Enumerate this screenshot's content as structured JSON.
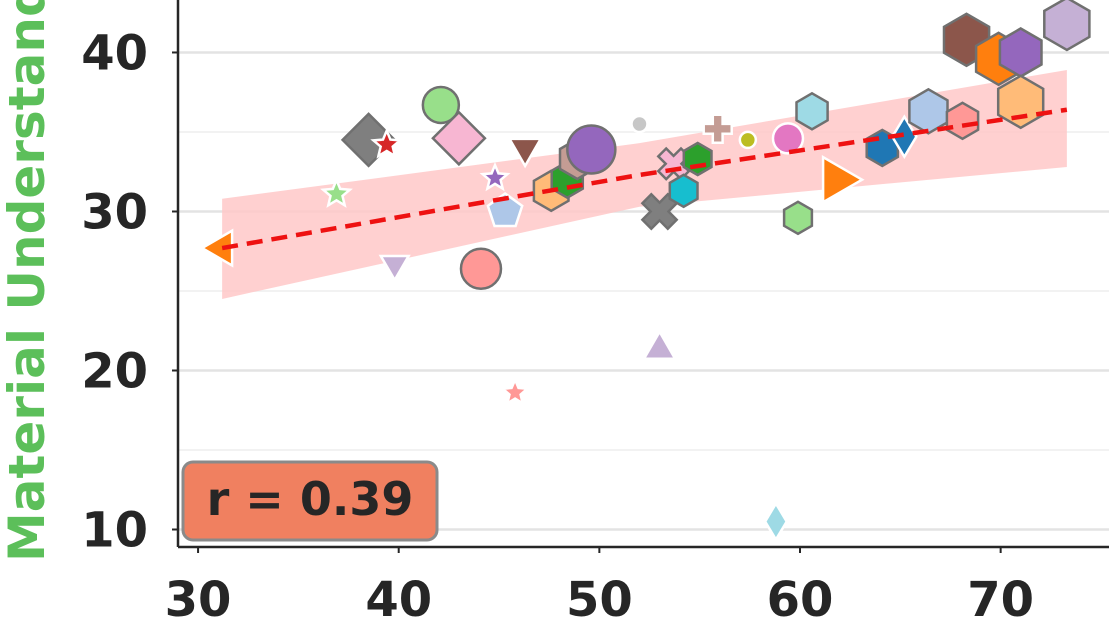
{
  "chart_data": {
    "type": "scatter",
    "ylabel": "Material Understanding",
    "ylabel_color": "#5cbf5a",
    "annotation": "r = 0.39",
    "annotation_color": "#f08060",
    "xlim": [
      29,
      75.4
    ],
    "ylim": [
      8.9,
      43.3
    ],
    "xticks": [
      30,
      40,
      50,
      60,
      70
    ],
    "yticks": [
      10,
      20,
      30,
      40
    ],
    "minor_yticks": [
      15,
      25,
      35
    ],
    "grid": true,
    "x": [
      31.2,
      36.9,
      38.5,
      39.4,
      39.8,
      42.1,
      43.0,
      44.1,
      44.8,
      45.3,
      45.8,
      46.3,
      47.6,
      48.4,
      48.9,
      49.6,
      52.0,
      53.0,
      53.0,
      53.7,
      54.2,
      54.9,
      55.9,
      57.4,
      58.8,
      59.4,
      59.9,
      60.6,
      61.8,
      64.1,
      65.2,
      66.4,
      68.1,
      68.3,
      69.9,
      71.0,
      71.0,
      73.3
    ],
    "y": [
      27.7,
      31.1,
      34.5,
      34.2,
      26.7,
      36.7,
      34.6,
      26.4,
      32.1,
      30.0,
      18.6,
      34.0,
      31.3,
      32.0,
      33.3,
      33.9,
      35.5,
      30.0,
      21.3,
      33.0,
      31.3,
      33.3,
      35.2,
      34.5,
      10.5,
      34.6,
      29.6,
      36.3,
      32.0,
      34.0,
      34.7,
      36.3,
      35.7,
      40.8,
      39.6,
      40.0,
      36.9,
      41.8
    ],
    "sizes": [
      20,
      14,
      26,
      14,
      16,
      18,
      26,
      20,
      13,
      18,
      13,
      18,
      20,
      18,
      20,
      24,
      8,
      18,
      18,
      16,
      16,
      16,
      14,
      8,
      18,
      15,
      16,
      18,
      26,
      18,
      20,
      22,
      18,
      26,
      26,
      24,
      26,
      26
    ],
    "markers": [
      "<",
      "*",
      "D",
      "*",
      "v",
      "o",
      "D",
      "o",
      "*",
      "p",
      "*",
      "v",
      "h",
      "h",
      "h",
      "o",
      "o",
      "X",
      "^",
      "X",
      "h",
      "h",
      "P",
      "o",
      "d",
      "o",
      "h",
      "h",
      ">",
      "h",
      "d",
      "h",
      "h",
      "h",
      "h",
      "h",
      "h",
      "h"
    ],
    "colors": [
      "#ff7f0e",
      "#98df8a",
      "#7f7f7f",
      "#d62728",
      "#c5b0d5",
      "#98df8a",
      "#f7b6d2",
      "#ff9896",
      "#9467bd",
      "#aec7e8",
      "#ff9896",
      "#8c564b",
      "#ffbb78",
      "#2ca02c",
      "#c49c94",
      "#9467bd",
      "#c7c7c7",
      "#7f7f7f",
      "#c5b0d5",
      "#f7b6d2",
      "#17becf",
      "#2ca02c",
      "#c49c94",
      "#bcbd22",
      "#9edae5",
      "#e377c2",
      "#98df8a",
      "#9edae5",
      "#ff7f0e",
      "#1f77b4",
      "#1f77b4",
      "#aec7e8",
      "#ff9896",
      "#8c564b",
      "#ff7f0e",
      "#9467bd",
      "#ffbb78",
      "#c5b0d5"
    ],
    "fit": {
      "x": [
        31.2,
        52.0,
        73.3
      ],
      "y": [
        27.7,
        32.3,
        36.4
      ],
      "lower": [
        24.5,
        30.3,
        32.8
      ],
      "upper": [
        30.8,
        34.3,
        38.9
      ],
      "color": "#ee1111",
      "band_color": "#ffc8c8"
    }
  }
}
